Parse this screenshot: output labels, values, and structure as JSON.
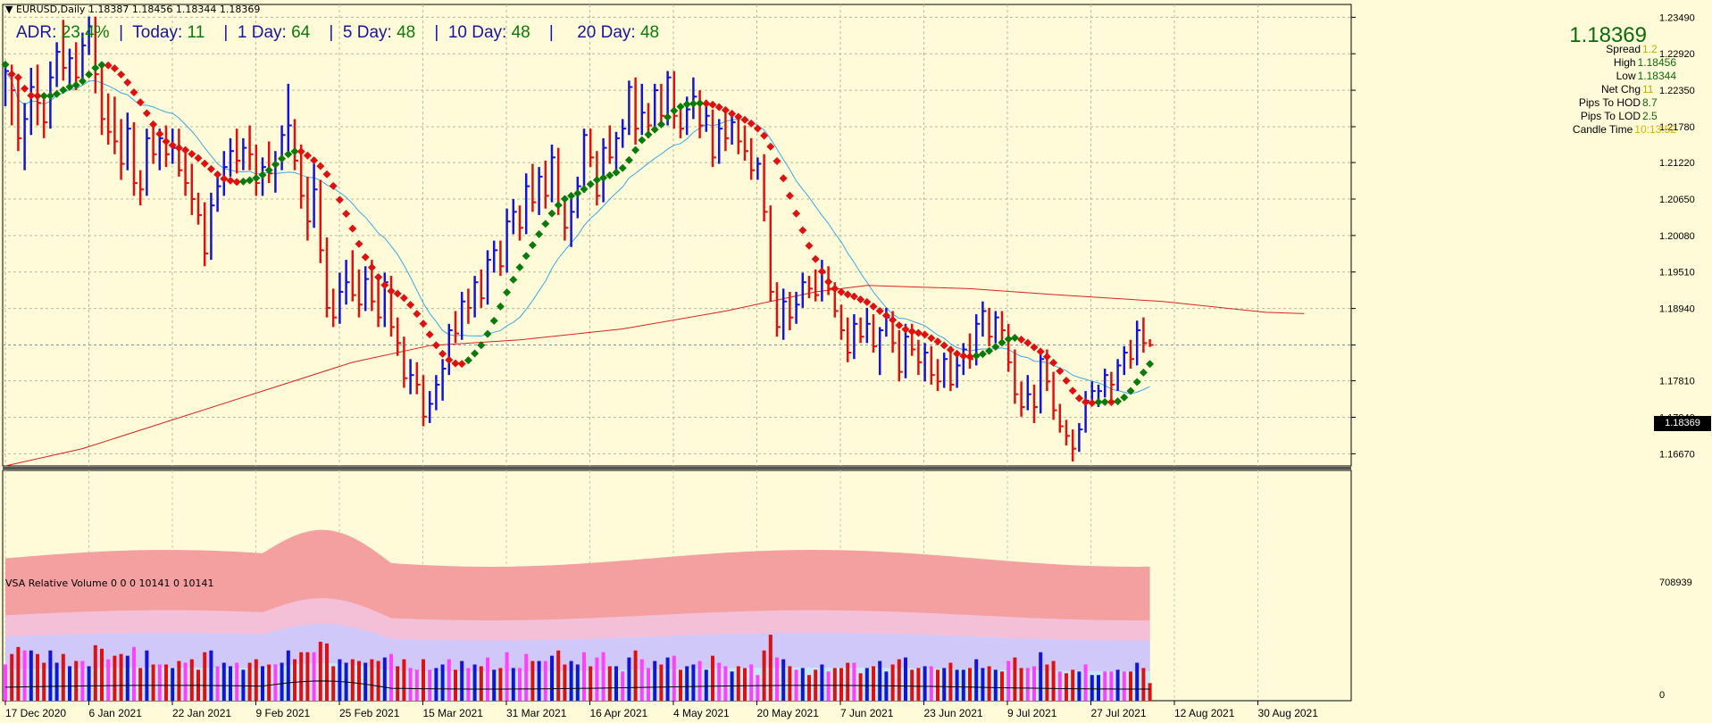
{
  "header": {
    "symbol_line": "EURUSD,Daily  1.18387 1.18456 1.18344 1.18369"
  },
  "adr": {
    "adr_label": "ADR: ",
    "adr_value": "23.4%",
    "today_label": "Today: ",
    "today_value": "11",
    "day1_label": "1 Day: ",
    "day1_value": "64",
    "day5_label": "5 Day: ",
    "day5_value": "48",
    "day10_label": "10 Day: ",
    "day10_value": "48",
    "day20_label": "20 Day: ",
    "day20_value": "48",
    "sep": "|"
  },
  "info_panel": {
    "price": "1.18369",
    "rows": [
      {
        "label": "Spread",
        "value": "1.2",
        "color": "#c8a800"
      },
      {
        "label": "High",
        "value": "1.18456",
        "color": "#0a6a0a"
      },
      {
        "label": "Low",
        "value": "1.18344",
        "color": "#0a6a0a"
      },
      {
        "label": "Net Chg",
        "value": "11",
        "color": "#c8a800"
      },
      {
        "label": "Pips To HOD",
        "value": "8.7",
        "color": "#0a6a0a"
      },
      {
        "label": "Pips To LOD",
        "value": "2.5",
        "color": "#0a6a0a"
      },
      {
        "label": "Candle Time",
        "value": "10:13:52",
        "color": "#e0b000"
      }
    ]
  },
  "vsa": {
    "title": "VSA Relative Volume 0 0 0 10141 0 10141",
    "axis_max": "708939",
    "axis_min": "0"
  },
  "current_price_label": "1.18369",
  "chart_data": {
    "type": "bar",
    "price_ticks": [
      "1.23490",
      "1.22920",
      "1.22350",
      "1.21780",
      "1.21220",
      "1.20650",
      "1.20080",
      "1.19510",
      "1.18940",
      "1.18369",
      "1.17810",
      "1.17240",
      "1.16670"
    ],
    "ylim": [
      1.1648,
      1.2369
    ],
    "x_labels": [
      "17 Dec 2020",
      "6 Jan 2021",
      "22 Jan 2021",
      "9 Feb 2021",
      "25 Feb 2021",
      "15 Mar 2021",
      "31 Mar 2021",
      "16 Apr 2021",
      "4 May 2021",
      "20 May 2021",
      "7 Jun 2021",
      "23 Jun 2021",
      "9 Jul 2021",
      "27 Jul 2021",
      "12 Aug 2021",
      "30 Aug 2021"
    ],
    "colors": {
      "up": "#1414d8",
      "down": "#e01010",
      "trend_up": "#0a7a0a",
      "trend_down": "#e01010",
      "ma_fast": "#3aa8e8",
      "ma_slow": "#e02020"
    },
    "bars": [
      [
        1.2195,
        1.2275,
        1.221,
        1.2265
      ],
      [
        1.2265,
        1.2275,
        1.218,
        1.2235
      ],
      [
        1.2235,
        1.2255,
        1.214,
        1.216
      ],
      [
        1.216,
        1.2215,
        1.211,
        1.219
      ],
      [
        1.219,
        1.227,
        1.2165,
        1.224
      ],
      [
        1.224,
        1.2275,
        1.218,
        1.2215
      ],
      [
        1.2215,
        1.223,
        1.216,
        1.2185
      ],
      [
        1.2185,
        1.228,
        1.2175,
        1.2255
      ],
      [
        1.2255,
        1.231,
        1.224,
        1.2295
      ],
      [
        1.2295,
        1.2345,
        1.225,
        1.227
      ],
      [
        1.227,
        1.23,
        1.224,
        1.2285
      ],
      [
        1.2285,
        1.231,
        1.2235,
        1.2255
      ],
      [
        1.2255,
        1.2325,
        1.225,
        1.2305
      ],
      [
        1.2305,
        1.235,
        1.229,
        1.2335
      ],
      [
        1.2335,
        1.235,
        1.223,
        1.226
      ],
      [
        1.226,
        1.2275,
        1.2165,
        1.219
      ],
      [
        1.219,
        1.223,
        1.215,
        1.217
      ],
      [
        1.217,
        1.2225,
        1.2135,
        1.2155
      ],
      [
        1.2155,
        1.219,
        1.2095,
        1.212
      ],
      [
        1.212,
        1.22,
        1.211,
        1.2175
      ],
      [
        1.2175,
        1.2185,
        1.207,
        1.209
      ],
      [
        1.209,
        1.211,
        1.2055,
        1.208
      ],
      [
        1.208,
        1.2175,
        1.207,
        1.216
      ],
      [
        1.216,
        1.2185,
        1.212,
        1.2135
      ],
      [
        1.2135,
        1.2175,
        1.211,
        1.216
      ],
      [
        1.216,
        1.218,
        1.2115,
        1.2135
      ],
      [
        1.2135,
        1.2175,
        1.212,
        1.2145
      ],
      [
        1.2145,
        1.2175,
        1.21,
        1.211
      ],
      [
        1.211,
        1.214,
        1.207,
        1.209
      ],
      [
        1.209,
        1.212,
        1.204,
        1.2065
      ],
      [
        1.2065,
        1.2075,
        1.2025,
        1.204
      ],
      [
        1.204,
        1.206,
        1.196,
        1.198
      ],
      [
        1.198,
        1.2075,
        1.197,
        1.2055
      ],
      [
        1.2055,
        1.2105,
        1.2045,
        1.2085
      ],
      [
        1.2085,
        1.214,
        1.207,
        1.2115
      ],
      [
        1.2115,
        1.216,
        1.21,
        1.214
      ],
      [
        1.214,
        1.2175,
        1.2105,
        1.2125
      ],
      [
        1.2125,
        1.216,
        1.211,
        1.2145
      ],
      [
        1.2145,
        1.218,
        1.211,
        1.2135
      ],
      [
        1.2135,
        1.215,
        1.207,
        1.209
      ],
      [
        1.209,
        1.213,
        1.207,
        1.2115
      ],
      [
        1.2115,
        1.2155,
        1.209,
        1.2105
      ],
      [
        1.2105,
        1.214,
        1.2075,
        1.212
      ],
      [
        1.212,
        1.218,
        1.211,
        1.2165
      ],
      [
        1.2165,
        1.2245,
        1.214,
        1.218
      ],
      [
        1.218,
        1.219,
        1.211,
        1.2125
      ],
      [
        1.2125,
        1.215,
        1.205,
        1.207
      ],
      [
        1.207,
        1.21,
        1.2,
        1.203
      ],
      [
        1.203,
        1.212,
        1.202,
        1.208
      ],
      [
        1.208,
        1.2095,
        1.1965,
        1.1985
      ],
      [
        1.1985,
        1.2005,
        1.188,
        1.1895
      ],
      [
        1.1895,
        1.1925,
        1.1865,
        1.188
      ],
      [
        1.188,
        1.195,
        1.187,
        1.192
      ],
      [
        1.192,
        1.197,
        1.19,
        1.1935
      ],
      [
        1.1935,
        1.1985,
        1.1905,
        1.1915
      ],
      [
        1.1915,
        1.1955,
        1.188,
        1.19
      ],
      [
        1.19,
        1.196,
        1.189,
        1.194
      ],
      [
        1.194,
        1.197,
        1.189,
        1.1905
      ],
      [
        1.1905,
        1.194,
        1.1865,
        1.188
      ],
      [
        1.188,
        1.195,
        1.1865,
        1.1935
      ],
      [
        1.1935,
        1.1945,
        1.185,
        1.1865
      ],
      [
        1.1865,
        1.188,
        1.182,
        1.184
      ],
      [
        1.184,
        1.185,
        1.177,
        1.1785
      ],
      [
        1.1785,
        1.1815,
        1.176,
        1.179
      ],
      [
        1.179,
        1.181,
        1.176,
        1.1775
      ],
      [
        1.1775,
        1.179,
        1.171,
        1.1725
      ],
      [
        1.1725,
        1.1765,
        1.1715,
        1.1745
      ],
      [
        1.1745,
        1.179,
        1.1735,
        1.1775
      ],
      [
        1.1775,
        1.1815,
        1.175,
        1.18
      ],
      [
        1.18,
        1.187,
        1.179,
        1.186
      ],
      [
        1.186,
        1.189,
        1.184,
        1.1855
      ],
      [
        1.1855,
        1.192,
        1.1845,
        1.1905
      ],
      [
        1.1905,
        1.1925,
        1.187,
        1.1895
      ],
      [
        1.1895,
        1.1945,
        1.188,
        1.1935
      ],
      [
        1.1935,
        1.1955,
        1.1895,
        1.191
      ],
      [
        1.191,
        1.1985,
        1.19,
        1.197
      ],
      [
        1.197,
        1.2,
        1.195,
        1.1985
      ],
      [
        1.1985,
        1.2,
        1.1945,
        1.196
      ],
      [
        1.196,
        1.205,
        1.195,
        1.203
      ],
      [
        1.203,
        1.2065,
        1.201,
        1.2045
      ],
      [
        1.2045,
        1.2055,
        1.2,
        1.202
      ],
      [
        1.202,
        1.2105,
        1.201,
        1.2085
      ],
      [
        1.2085,
        1.212,
        1.2045,
        1.206
      ],
      [
        1.206,
        1.2115,
        1.204,
        1.21
      ],
      [
        1.21,
        1.2125,
        1.205,
        1.207
      ],
      [
        1.207,
        1.215,
        1.206,
        1.213
      ],
      [
        1.213,
        1.2145,
        1.204,
        1.2055
      ],
      [
        1.2055,
        1.2065,
        1.2,
        1.202
      ],
      [
        1.202,
        1.2065,
        1.199,
        1.2045
      ],
      [
        1.2045,
        1.21,
        1.2035,
        1.2085
      ],
      [
        1.2085,
        1.2175,
        1.2075,
        1.2165
      ],
      [
        1.2165,
        1.2175,
        1.2115,
        1.213
      ],
      [
        1.213,
        1.214,
        1.2055,
        1.207
      ],
      [
        1.207,
        1.216,
        1.206,
        1.2145
      ],
      [
        1.2145,
        1.218,
        1.212,
        1.213
      ],
      [
        1.213,
        1.217,
        1.211,
        1.216
      ],
      [
        1.216,
        1.219,
        1.2145,
        1.2175
      ],
      [
        1.2175,
        1.225,
        1.2165,
        1.224
      ],
      [
        1.224,
        1.2255,
        1.215,
        1.2175
      ],
      [
        1.2175,
        1.2245,
        1.2165,
        1.22
      ],
      [
        1.22,
        1.2215,
        1.216,
        1.218
      ],
      [
        1.218,
        1.2245,
        1.217,
        1.2235
      ],
      [
        1.2235,
        1.2245,
        1.218,
        1.2195
      ],
      [
        1.2195,
        1.2265,
        1.218,
        1.2255
      ],
      [
        1.2255,
        1.2265,
        1.2175,
        1.2195
      ],
      [
        1.2195,
        1.221,
        1.216,
        1.2175
      ],
      [
        1.2175,
        1.2225,
        1.2165,
        1.2205
      ],
      [
        1.2205,
        1.2255,
        1.219,
        1.2225
      ],
      [
        1.2225,
        1.2235,
        1.216,
        1.218
      ],
      [
        1.218,
        1.222,
        1.217,
        1.2195
      ],
      [
        1.2195,
        1.2205,
        1.2115,
        1.213
      ],
      [
        1.213,
        1.219,
        1.212,
        1.2175
      ],
      [
        1.2175,
        1.22,
        1.214,
        1.216
      ],
      [
        1.216,
        1.2195,
        1.215,
        1.2185
      ],
      [
        1.2185,
        1.2195,
        1.2135,
        1.2155
      ],
      [
        1.2155,
        1.218,
        1.2125,
        1.214
      ],
      [
        1.214,
        1.216,
        1.2095,
        1.211
      ],
      [
        1.211,
        1.213,
        1.2095,
        1.212
      ],
      [
        1.212,
        1.2135,
        1.203,
        1.2045
      ],
      [
        1.2045,
        1.2055,
        1.1905,
        1.192
      ],
      [
        1.192,
        1.1935,
        1.185,
        1.1865
      ],
      [
        1.1865,
        1.1925,
        1.1845,
        1.1905
      ],
      [
        1.1905,
        1.192,
        1.186,
        1.188
      ],
      [
        1.188,
        1.192,
        1.187,
        1.19
      ],
      [
        1.19,
        1.195,
        1.1895,
        1.1935
      ],
      [
        1.1935,
        1.1945,
        1.191,
        1.1925
      ],
      [
        1.1925,
        1.1955,
        1.1905,
        1.1915
      ],
      [
        1.1915,
        1.197,
        1.1905,
        1.195
      ],
      [
        1.195,
        1.196,
        1.1915,
        1.1925
      ],
      [
        1.1925,
        1.1935,
        1.188,
        1.189
      ],
      [
        1.189,
        1.19,
        1.1845,
        1.186
      ],
      [
        1.186,
        1.188,
        1.181,
        1.1825
      ],
      [
        1.1825,
        1.1885,
        1.1815,
        1.187
      ],
      [
        1.187,
        1.188,
        1.184,
        1.185
      ],
      [
        1.185,
        1.1895,
        1.184,
        1.187
      ],
      [
        1.187,
        1.1885,
        1.1825,
        1.1835
      ],
      [
        1.1835,
        1.1865,
        1.179,
        1.186
      ],
      [
        1.186,
        1.1895,
        1.185,
        1.188
      ],
      [
        1.188,
        1.189,
        1.1825,
        1.184
      ],
      [
        1.184,
        1.186,
        1.178,
        1.1795
      ],
      [
        1.1795,
        1.187,
        1.1785,
        1.185
      ],
      [
        1.185,
        1.187,
        1.182,
        1.183
      ],
      [
        1.183,
        1.1845,
        1.179,
        1.181
      ],
      [
        1.181,
        1.184,
        1.178,
        1.1825
      ],
      [
        1.1825,
        1.1835,
        1.1775,
        1.179
      ],
      [
        1.179,
        1.1815,
        1.1765,
        1.178
      ],
      [
        1.178,
        1.1825,
        1.177,
        1.1815
      ],
      [
        1.1815,
        1.1835,
        1.1765,
        1.1775
      ],
      [
        1.1775,
        1.182,
        1.177,
        1.1805
      ],
      [
        1.1805,
        1.184,
        1.179,
        1.183
      ],
      [
        1.183,
        1.1855,
        1.18,
        1.1815
      ],
      [
        1.1815,
        1.1885,
        1.1805,
        1.187
      ],
      [
        1.187,
        1.1905,
        1.185,
        1.189
      ],
      [
        1.189,
        1.1895,
        1.1835,
        1.185
      ],
      [
        1.185,
        1.189,
        1.184,
        1.188
      ],
      [
        1.188,
        1.189,
        1.1845,
        1.186
      ],
      [
        1.186,
        1.187,
        1.1795,
        1.181
      ],
      [
        1.181,
        1.183,
        1.1745,
        1.176
      ],
      [
        1.176,
        1.178,
        1.1725,
        1.174
      ],
      [
        1.174,
        1.179,
        1.1735,
        1.176
      ],
      [
        1.176,
        1.1775,
        1.1715,
        1.174
      ],
      [
        1.174,
        1.183,
        1.173,
        1.1815
      ],
      [
        1.1815,
        1.183,
        1.1765,
        1.178
      ],
      [
        1.178,
        1.1795,
        1.172,
        1.1735
      ],
      [
        1.1735,
        1.1745,
        1.17,
        1.171
      ],
      [
        1.171,
        1.172,
        1.168,
        1.1695
      ],
      [
        1.1695,
        1.1705,
        1.1655,
        1.1675
      ],
      [
        1.1675,
        1.1715,
        1.167,
        1.1705
      ],
      [
        1.1705,
        1.1765,
        1.17,
        1.175
      ],
      [
        1.175,
        1.178,
        1.1745,
        1.1765
      ],
      [
        1.1765,
        1.1775,
        1.174,
        1.1765
      ],
      [
        1.1765,
        1.18,
        1.1755,
        1.179
      ],
      [
        1.179,
        1.1795,
        1.175,
        1.1775
      ],
      [
        1.1775,
        1.1815,
        1.1765,
        1.1805
      ],
      [
        1.1805,
        1.1835,
        1.179,
        1.1825
      ],
      [
        1.1825,
        1.1845,
        1.18,
        1.1815
      ],
      [
        1.1815,
        1.1875,
        1.1805,
        1.186
      ],
      [
        1.186,
        1.188,
        1.1825,
        1.184
      ],
      [
        1.184,
        1.1846,
        1.1834,
        1.1837
      ]
    ],
    "ma_slow": [
      [
        0,
        1.1648
      ],
      [
        12,
        1.1675
      ],
      [
        26,
        1.172
      ],
      [
        40,
        1.1765
      ],
      [
        54,
        1.181
      ],
      [
        66,
        1.1836
      ],
      [
        80,
        1.1845
      ],
      [
        96,
        1.1862
      ],
      [
        112,
        1.189
      ],
      [
        126,
        1.192
      ],
      [
        134,
        1.193
      ],
      [
        150,
        1.1925
      ],
      [
        164,
        1.1915
      ],
      [
        180,
        1.1905
      ],
      [
        196,
        1.1888
      ],
      [
        202,
        1.1886
      ]
    ]
  }
}
